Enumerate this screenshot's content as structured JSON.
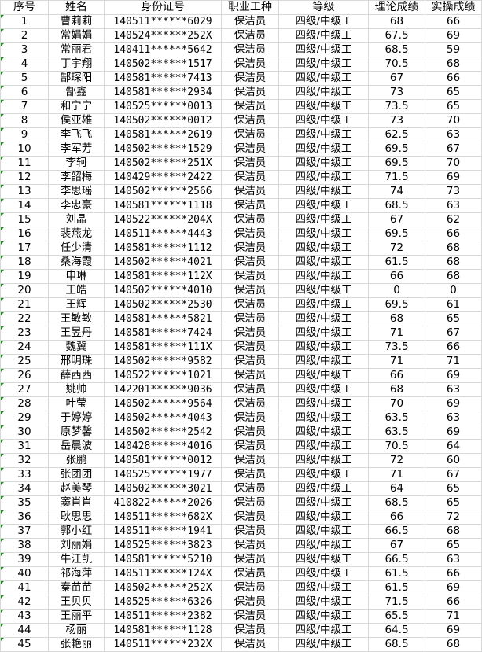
{
  "headers": [
    "序号",
    "姓名",
    "身份证号",
    "职业工种",
    "等级",
    "理论成绩",
    "实操成绩"
  ],
  "error_marker_color": "#1e8a1e",
  "rows": [
    [
      "1",
      "曹莉莉",
      "140511******6029",
      "保洁员",
      "四级/中级工",
      "68",
      "66"
    ],
    [
      "2",
      "常娟娟",
      "140524******252X",
      "保洁员",
      "四级/中级工",
      "67.5",
      "69"
    ],
    [
      "3",
      "常丽君",
      "140411******5642",
      "保洁员",
      "四级/中级工",
      "68.5",
      "59"
    ],
    [
      "4",
      "丁宇翔",
      "140502******1517",
      "保洁员",
      "四级/中级工",
      "70.5",
      "68"
    ],
    [
      "5",
      "郜琛阳",
      "140581******7413",
      "保洁员",
      "四级/中级工",
      "67",
      "66"
    ],
    [
      "6",
      "郜鑫",
      "140581******2934",
      "保洁员",
      "四级/中级工",
      "73",
      "65"
    ],
    [
      "7",
      "和宁宁",
      "140525******0013",
      "保洁员",
      "四级/中级工",
      "73.5",
      "65"
    ],
    [
      "8",
      "侯亚雄",
      "140502******0012",
      "保洁员",
      "四级/中级工",
      "73",
      "70"
    ],
    [
      "9",
      "李飞飞",
      "140581******2619",
      "保洁员",
      "四级/中级工",
      "62.5",
      "63"
    ],
    [
      "10",
      "李军芳",
      "140502******1529",
      "保洁员",
      "四级/中级工",
      "69.5",
      "67"
    ],
    [
      "11",
      "李轲",
      "140502******251X",
      "保洁员",
      "四级/中级工",
      "69.5",
      "70"
    ],
    [
      "12",
      "李韶梅",
      "140429******2422",
      "保洁员",
      "四级/中级工",
      "71.5",
      "69"
    ],
    [
      "13",
      "李思瑶",
      "140502******2566",
      "保洁员",
      "四级/中级工",
      "74",
      "73"
    ],
    [
      "14",
      "李忠豪",
      "140581******1118",
      "保洁员",
      "四级/中级工",
      "68.5",
      "63"
    ],
    [
      "15",
      "刘晶",
      "140522******204X",
      "保洁员",
      "四级/中级工",
      "67",
      "62"
    ],
    [
      "16",
      "裴燕龙",
      "140511******4443",
      "保洁员",
      "四级/中级工",
      "69.5",
      "66"
    ],
    [
      "17",
      "任少清",
      "140581******1112",
      "保洁员",
      "四级/中级工",
      "72",
      "68"
    ],
    [
      "18",
      "桑海霞",
      "140502******4021",
      "保洁员",
      "四级/中级工",
      "61.5",
      "68"
    ],
    [
      "19",
      "申琳",
      "140581******112X",
      "保洁员",
      "四级/中级工",
      "66",
      "68"
    ],
    [
      "20",
      "王皓",
      "140502******4010",
      "保洁员",
      "四级/中级工",
      "0",
      "0"
    ],
    [
      "21",
      "王辉",
      "140502******2530",
      "保洁员",
      "四级/中级工",
      "69.5",
      "61"
    ],
    [
      "22",
      "王敏敏",
      "140581******5821",
      "保洁员",
      "四级/中级工",
      "68",
      "65"
    ],
    [
      "23",
      "王昱丹",
      "140581******7424",
      "保洁员",
      "四级/中级工",
      "71",
      "67"
    ],
    [
      "24",
      "魏冀",
      "140581******111X",
      "保洁员",
      "四级/中级工",
      "73.5",
      "66"
    ],
    [
      "25",
      "邢明珠",
      "140502******9582",
      "保洁员",
      "四级/中级工",
      "71",
      "71"
    ],
    [
      "26",
      "薛西西",
      "140522******1021",
      "保洁员",
      "四级/中级工",
      "66",
      "69"
    ],
    [
      "27",
      "姚帅",
      "142201******9036",
      "保洁员",
      "四级/中级工",
      "68",
      "63"
    ],
    [
      "28",
      "叶莹",
      "140502******9564",
      "保洁员",
      "四级/中级工",
      "70",
      "69"
    ],
    [
      "29",
      "于婷婷",
      "140502******4043",
      "保洁员",
      "四级/中级工",
      "63.5",
      "63"
    ],
    [
      "30",
      "原梦馨",
      "140502******2542",
      "保洁员",
      "四级/中级工",
      "63.5",
      "69"
    ],
    [
      "31",
      "岳晨波",
      "140428******4016",
      "保洁员",
      "四级/中级工",
      "70.5",
      "64"
    ],
    [
      "32",
      "张鹏",
      "140581******0012",
      "保洁员",
      "四级/中级工",
      "72",
      "60"
    ],
    [
      "33",
      "张团团",
      "140525******1977",
      "保洁员",
      "四级/中级工",
      "71",
      "67"
    ],
    [
      "34",
      "赵美琴",
      "140502******3021",
      "保洁员",
      "四级/中级工",
      "64",
      "65"
    ],
    [
      "35",
      "窦肖肖",
      "410822******2026",
      "保洁员",
      "四级/中级工",
      "68.5",
      "65"
    ],
    [
      "36",
      "耿思思",
      "140511******682X",
      "保洁员",
      "四级/中级工",
      "66",
      "72"
    ],
    [
      "37",
      "郭小红",
      "140511******1941",
      "保洁员",
      "四级/中级工",
      "66.5",
      "68"
    ],
    [
      "38",
      "刘丽娟",
      "140525******3823",
      "保洁员",
      "四级/中级工",
      "67",
      "65"
    ],
    [
      "39",
      "牛江凯",
      "140581******5210",
      "保洁员",
      "四级/中级工",
      "66.5",
      "63"
    ],
    [
      "40",
      "祁海萍",
      "140511******124X",
      "保洁员",
      "四级/中级工",
      "61.5",
      "66"
    ],
    [
      "41",
      "秦苗苗",
      "140502******252X",
      "保洁员",
      "四级/中级工",
      "61.5",
      "69"
    ],
    [
      "42",
      "王贝贝",
      "140525******6326",
      "保洁员",
      "四级/中级工",
      "71.5",
      "66"
    ],
    [
      "43",
      "王丽平",
      "140511******2382",
      "保洁员",
      "四级/中级工",
      "65.5",
      "71"
    ],
    [
      "44",
      "杨丽",
      "140581******1128",
      "保洁员",
      "四级/中级工",
      "64.5",
      "69"
    ],
    [
      "45",
      "张艳丽",
      "140511******232X",
      "保洁员",
      "四级/中级工",
      "68.5",
      "68"
    ]
  ]
}
